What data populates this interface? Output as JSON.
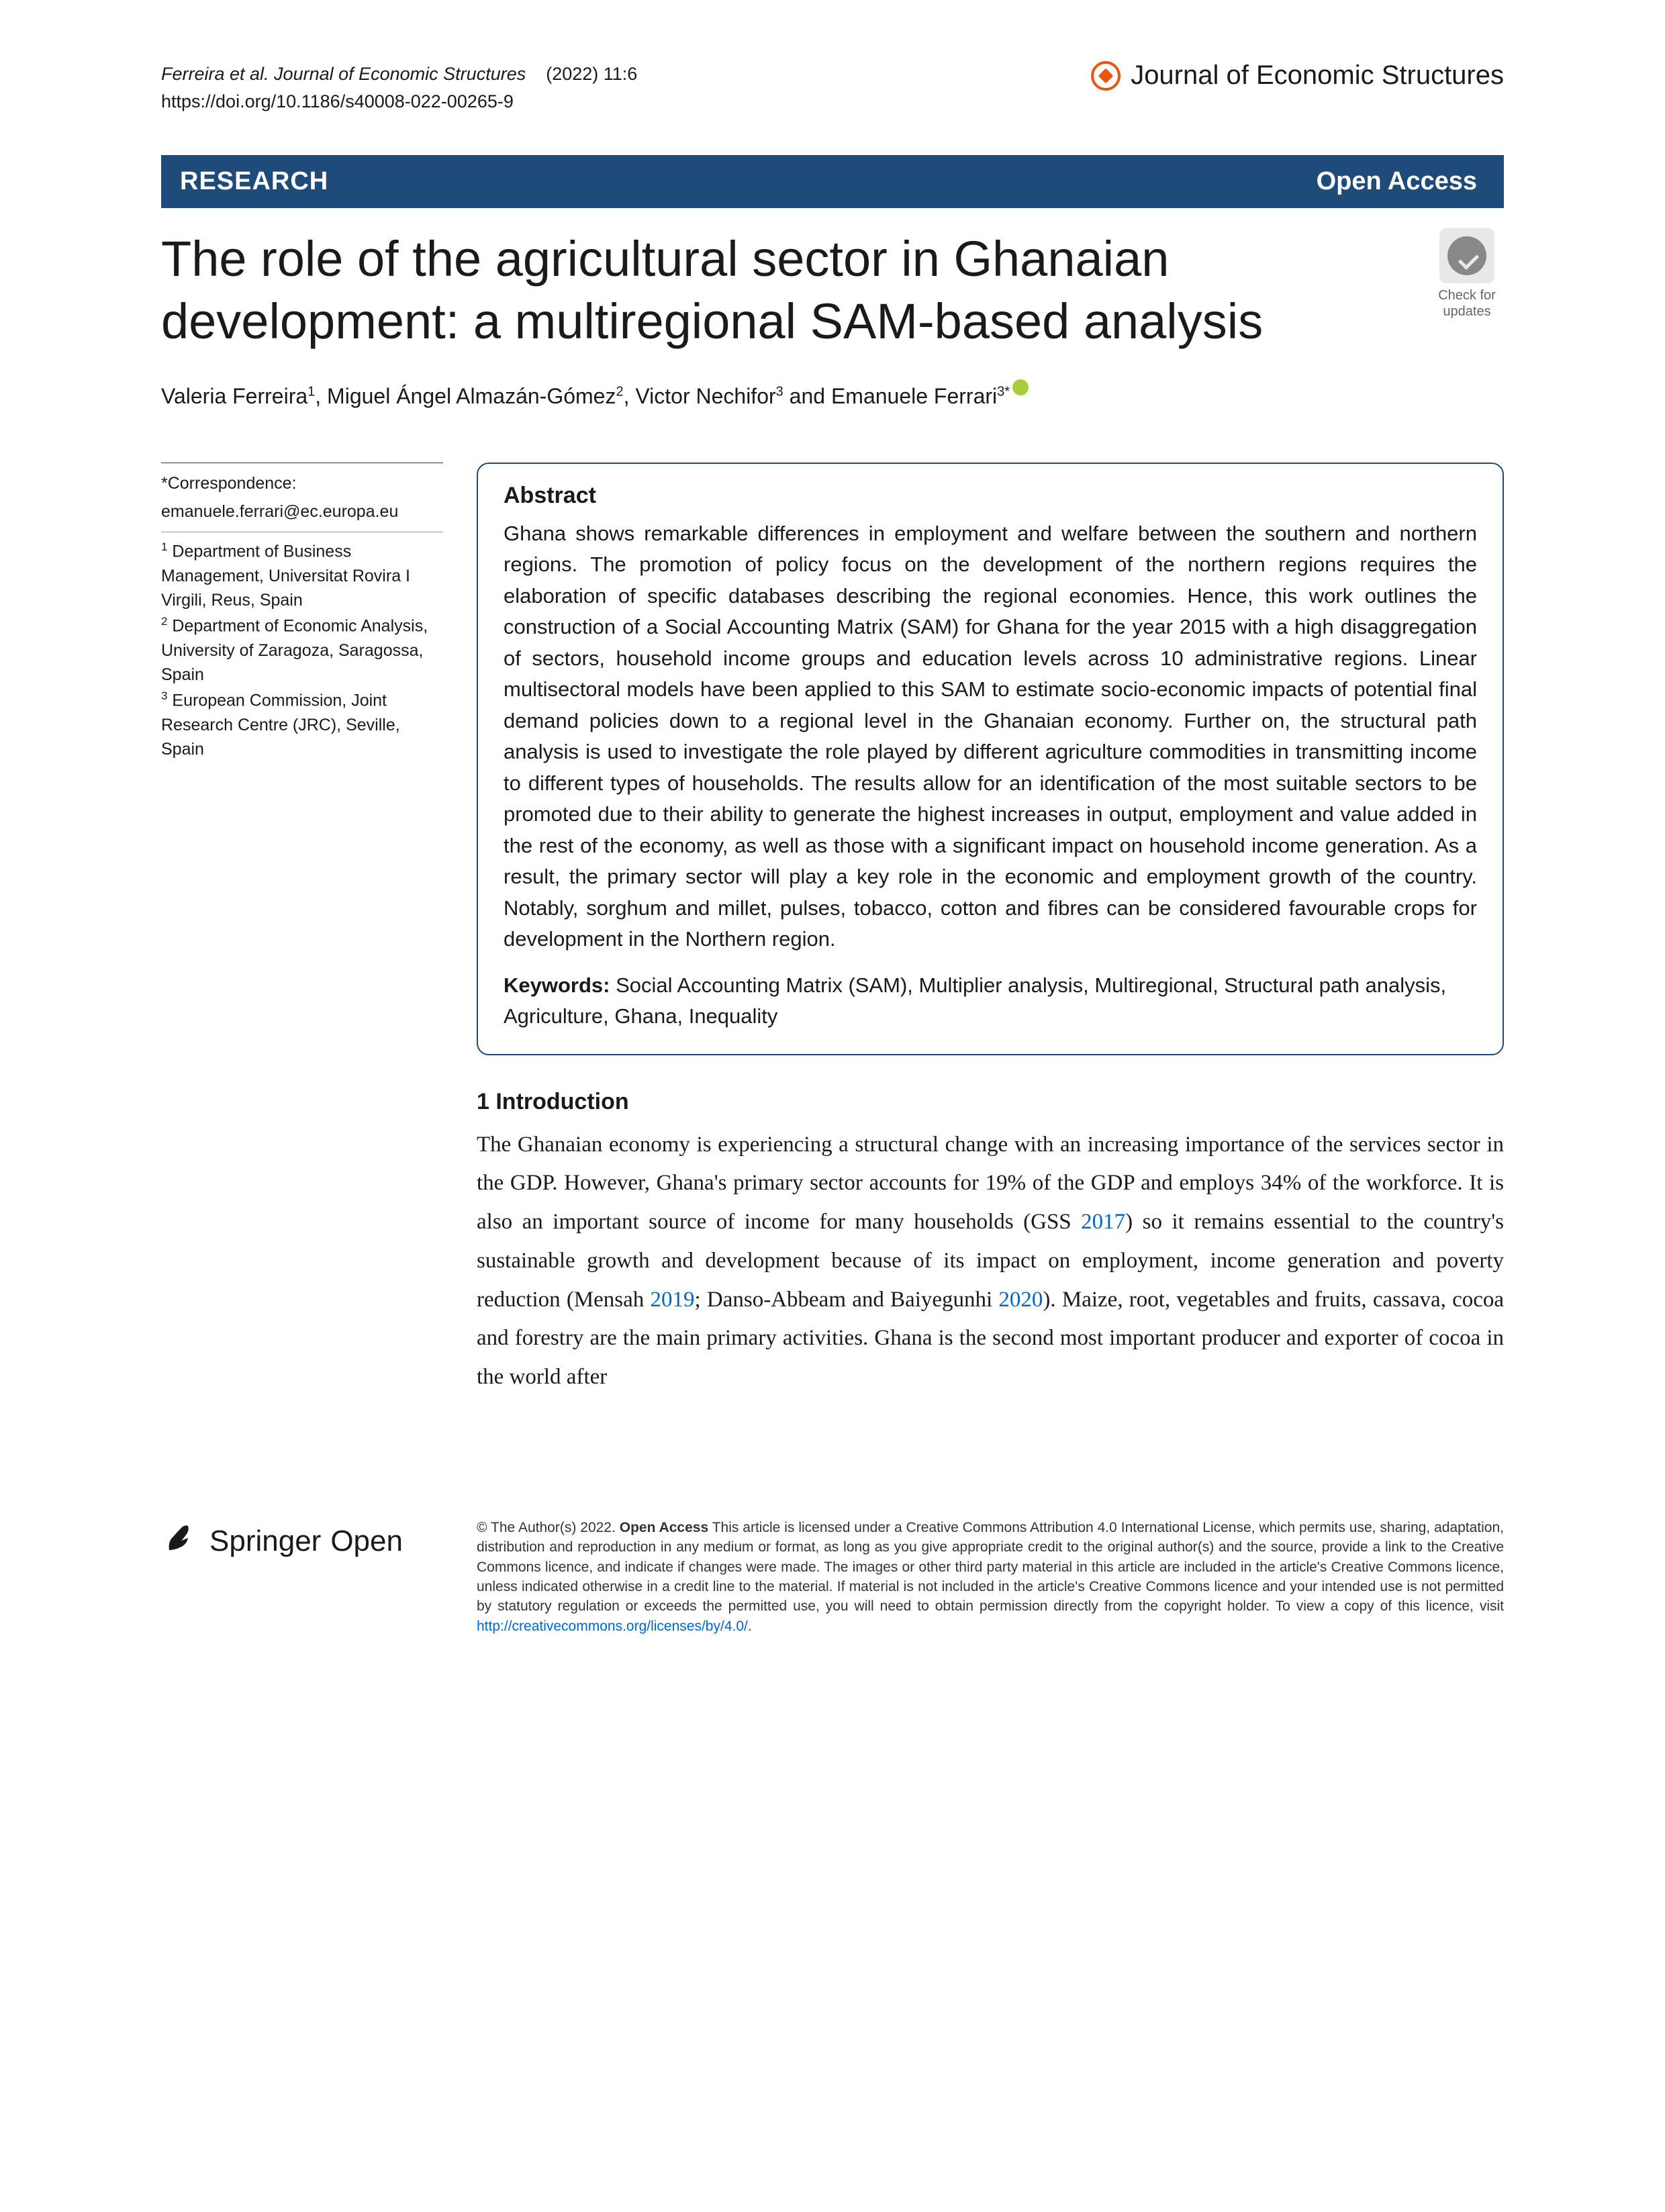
{
  "header": {
    "citation_authors": "Ferreira ",
    "citation_etal": "et al. Journal of Economic Structures",
    "citation_issue": "(2022) 11:6",
    "doi": "https://doi.org/10.1186/s40008-022-00265-9",
    "journal_name": "Journal of Economic Structures"
  },
  "research_bar": {
    "label": "RESEARCH",
    "open_access": "Open Access"
  },
  "title": "The role of the agricultural sector in Ghanaian development: a multiregional SAM-based analysis",
  "check_updates_label": "Check for updates",
  "authors_html": "Valeria Ferreira<sup>1</sup>, Miguel Ángel Almazán-Gómez<sup>2</sup>, Victor Nechifor<sup>3</sup> and Emanuele Ferrari<sup>3*</sup>",
  "sidebar": {
    "correspondence_label": "*Correspondence:",
    "email": "emanuele.ferrari@ec.europa.eu",
    "affiliations": [
      "<sup>1</sup> Department of Business Management, Universitat Rovira I Virgili, Reus, Spain",
      "<sup>2</sup> Department of Economic Analysis, University of Zaragoza, Saragossa, Spain",
      "<sup>3</sup> European Commission, Joint Research Centre (JRC), Seville, Spain"
    ]
  },
  "abstract": {
    "heading": "Abstract",
    "text": "Ghana shows remarkable differences in employment and welfare between the southern and northern regions. The promotion of policy focus on the development of the northern regions requires the elaboration of specific databases describing the regional economies. Hence, this work outlines the construction of a Social Accounting Matrix (SAM) for Ghana for the year 2015 with a high disaggregation of sectors, household income groups and education levels across 10 administrative regions. Linear multisectoral models have been applied to this SAM to estimate socio-economic impacts of potential final demand policies down to a regional level in the Ghanaian economy. Further on, the structural path analysis is used to investigate the role played by different agriculture commodities in transmitting income to different types of households. The results allow for an identification of the most suitable sectors to be promoted due to their ability to generate the highest increases in output, employment and value added in the rest of the economy, as well as those with a significant impact on household income generation. As a result, the primary sector will play a key role in the economic and employment growth of the country. Notably, sorghum and millet, pulses, tobacco, cotton and fibres can be considered favourable crops for development in the Northern region.",
    "keywords_label": "Keywords:",
    "keywords": "Social Accounting Matrix (SAM), Multiplier analysis, Multiregional, Structural path analysis, Agriculture, Ghana, Inequality"
  },
  "section1": {
    "heading": "1  Introduction",
    "paragraph": "The Ghanaian economy is experiencing a structural change with an increasing importance of the services sector in the GDP. However, Ghana's primary sector accounts for 19% of the GDP and employs 34% of the workforce. It is also an important source of income for many households (GSS <span class=\"ref-link\">2017</span>) so it remains essential to the country's sustainable growth and development because of its impact on employment, income generation and poverty reduction (Mensah <span class=\"ref-link\">2019</span>; Danso-Abbeam and Baiyegunhi <span class=\"ref-link\">2020</span>). Maize, root, vegetables and fruits, cassava, cocoa and forestry are the main primary activities. Ghana is the second most important producer and exporter of cocoa in the world after"
  },
  "footer": {
    "springer": "Springer",
    "open": "Open",
    "license": "© The Author(s) 2022. <b>Open Access</b> This article is licensed under a Creative Commons Attribution 4.0 International License, which permits use, sharing, adaptation, distribution and reproduction in any medium or format, as long as you give appropriate credit to the original author(s) and the source, provide a link to the Creative Commons licence, and indicate if changes were made. The images or other third party material in this article are included in the article's Creative Commons licence, unless indicated otherwise in a credit line to the material. If material is not included in the article's Creative Commons licence and your intended use is not permitted by statutory regulation or exceeds the permitted use, you will need to obtain permission directly from the copyright holder. To view a copy of this licence, visit <span class=\"license-link\">http://creativecommons.org/licenses/by/4.0/</span>."
  },
  "colors": {
    "bar_bg": "#1e4b7a",
    "brand_orange": "#e9550d",
    "link_blue": "#0066cc",
    "orcid_green": "#a6ce39"
  }
}
